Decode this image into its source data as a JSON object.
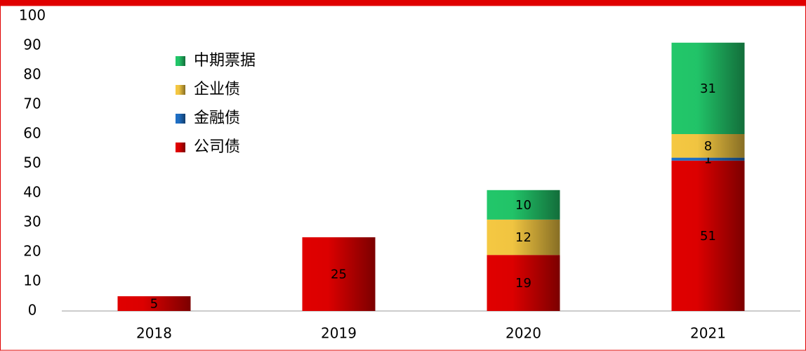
{
  "chart_data": {
    "type": "stacked_bar",
    "categories": [
      "2018",
      "2019",
      "2020",
      "2021"
    ],
    "series": [
      {
        "name": "公司债",
        "color": "#e00000",
        "values": [
          5,
          25,
          19,
          51
        ]
      },
      {
        "name": "金融债",
        "color": "#1f6fc5",
        "values": [
          null,
          null,
          null,
          1
        ]
      },
      {
        "name": "企业债",
        "color": "#f5c842",
        "values": [
          null,
          null,
          12,
          8
        ]
      },
      {
        "name": "中期票据",
        "color": "#22c76a",
        "values": [
          null,
          null,
          10,
          31
        ]
      }
    ],
    "ylim": [
      0,
      100
    ],
    "yticks": [
      0,
      10,
      20,
      30,
      40,
      50,
      60,
      70,
      80,
      90,
      100
    ],
    "grid": false,
    "legend": "upper left"
  }
}
